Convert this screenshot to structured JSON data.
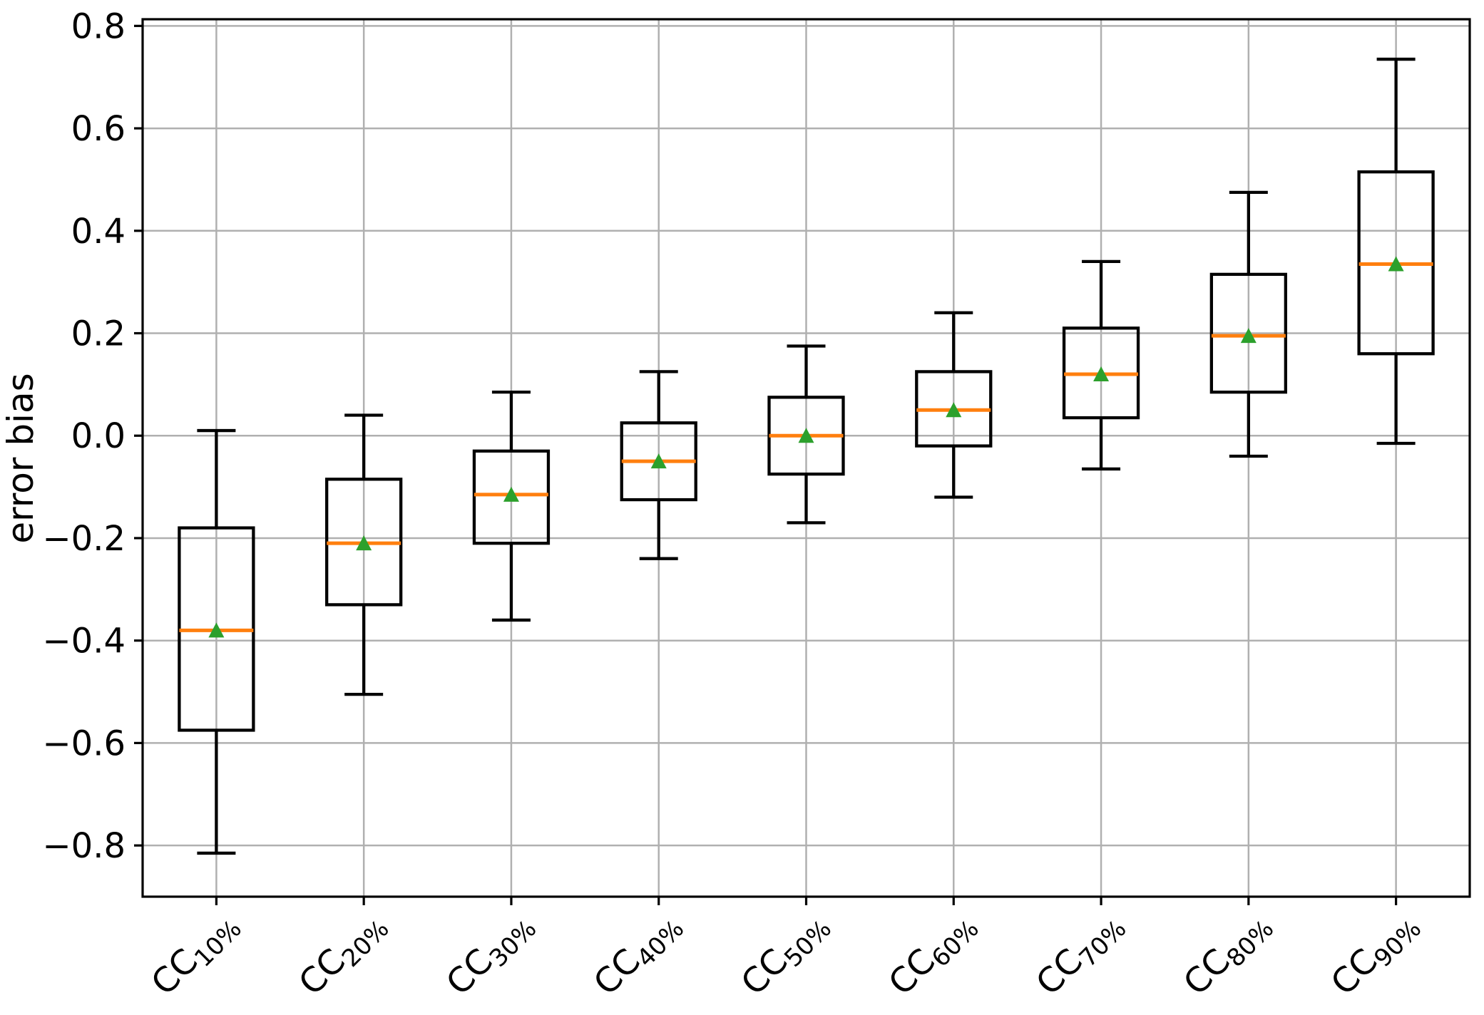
{
  "figure": {
    "background": "#ffffff"
  },
  "chart_data": {
    "type": "boxplot",
    "title": "",
    "xlabel": "",
    "ylabel": "error bias",
    "grid": true,
    "legend_position": "none",
    "ylim": [
      -0.9,
      0.813
    ],
    "yticks": [
      {
        "value": 0.8,
        "label": "0.8"
      },
      {
        "value": 0.6,
        "label": "0.6"
      },
      {
        "value": 0.4,
        "label": "0.4"
      },
      {
        "value": 0.2,
        "label": "0.2"
      },
      {
        "value": 0.0,
        "label": "0.0"
      },
      {
        "value": -0.2,
        "label": "−0.2"
      },
      {
        "value": -0.4,
        "label": "−0.4"
      },
      {
        "value": -0.6,
        "label": "−0.6"
      },
      {
        "value": -0.8,
        "label": "−0.8"
      }
    ],
    "categories": [
      {
        "prefix": "CC",
        "subscript": "10%"
      },
      {
        "prefix": "CC",
        "subscript": "20%"
      },
      {
        "prefix": "CC",
        "subscript": "30%"
      },
      {
        "prefix": "CC",
        "subscript": "40%"
      },
      {
        "prefix": "CC",
        "subscript": "50%"
      },
      {
        "prefix": "CC",
        "subscript": "60%"
      },
      {
        "prefix": "CC",
        "subscript": "70%"
      },
      {
        "prefix": "CC",
        "subscript": "80%"
      },
      {
        "prefix": "CC",
        "subscript": "90%"
      }
    ],
    "boxes": [
      {
        "category": "CC 10%",
        "whislo": -0.815,
        "q1": -0.575,
        "med": -0.38,
        "q3": -0.18,
        "whishi": 0.01,
        "mean": -0.38
      },
      {
        "category": "CC 20%",
        "whislo": -0.505,
        "q1": -0.33,
        "med": -0.21,
        "q3": -0.085,
        "whishi": 0.04,
        "mean": -0.21
      },
      {
        "category": "CC 30%",
        "whislo": -0.36,
        "q1": -0.21,
        "med": -0.115,
        "q3": -0.03,
        "whishi": 0.085,
        "mean": -0.115
      },
      {
        "category": "CC 40%",
        "whislo": -0.24,
        "q1": -0.125,
        "med": -0.05,
        "q3": 0.025,
        "whishi": 0.125,
        "mean": -0.05
      },
      {
        "category": "CC 50%",
        "whislo": -0.17,
        "q1": -0.075,
        "med": 0.0,
        "q3": 0.075,
        "whishi": 0.175,
        "mean": 0.0
      },
      {
        "category": "CC 60%",
        "whislo": -0.12,
        "q1": -0.02,
        "med": 0.05,
        "q3": 0.125,
        "whishi": 0.24,
        "mean": 0.05
      },
      {
        "category": "CC 70%",
        "whislo": -0.065,
        "q1": 0.035,
        "med": 0.12,
        "q3": 0.21,
        "whishi": 0.34,
        "mean": 0.12
      },
      {
        "category": "CC 80%",
        "whislo": -0.04,
        "q1": 0.085,
        "med": 0.195,
        "q3": 0.315,
        "whishi": 0.475,
        "mean": 0.195
      },
      {
        "category": "CC 90%",
        "whislo": -0.015,
        "q1": 0.16,
        "med": 0.335,
        "q3": 0.515,
        "whishi": 0.735,
        "mean": 0.335
      }
    ],
    "colors": {
      "median_line": "#ff7f0e",
      "mean_marker": "#2ca02c",
      "box_line": "#000000",
      "whisker_line": "#000000",
      "grid_line": "#b0b0b0",
      "spine": "#000000",
      "text": "#000000",
      "background": "#ffffff"
    }
  }
}
